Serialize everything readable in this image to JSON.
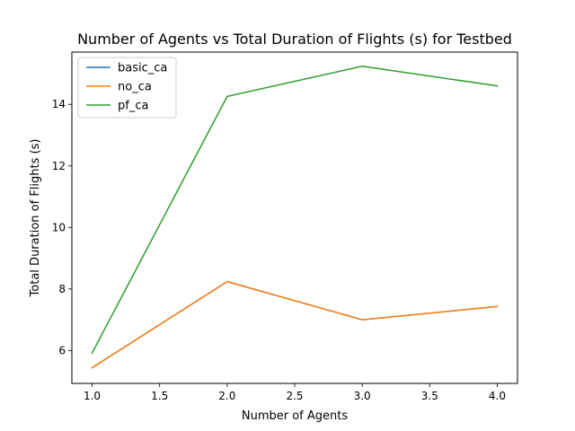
{
  "chart_data": {
    "type": "line",
    "title": "Number of Agents vs Total Duration of Flights (s) for Testbed",
    "xlabel": "Number of Agents",
    "ylabel": "Total Duration of Flights (s)",
    "x": [
      1.0,
      2.0,
      3.0,
      4.0
    ],
    "xlim": [
      0.85,
      4.15
    ],
    "ylim": [
      4.93,
      15.7
    ],
    "xticks": [
      "1.0",
      "1.5",
      "2.0",
      "2.5",
      "3.0",
      "3.5",
      "4.0"
    ],
    "xtick_values": [
      1.0,
      1.5,
      2.0,
      2.5,
      3.0,
      3.5,
      4.0
    ],
    "yticks": [
      "6",
      "8",
      "10",
      "12",
      "14"
    ],
    "ytick_values": [
      6,
      8,
      10,
      12,
      14
    ],
    "grid": false,
    "legend_placement": "top-left",
    "series": [
      {
        "name": "basic_ca",
        "color": "#1f77b4",
        "values": [
          5.44,
          8.24,
          7.0,
          7.43
        ]
      },
      {
        "name": "no_ca",
        "color": "#ff7f0e",
        "values": [
          5.44,
          8.24,
          7.0,
          7.43
        ]
      },
      {
        "name": "pf_ca",
        "color": "#2ca02c",
        "values": [
          5.92,
          14.26,
          15.24,
          14.6
        ]
      }
    ]
  }
}
